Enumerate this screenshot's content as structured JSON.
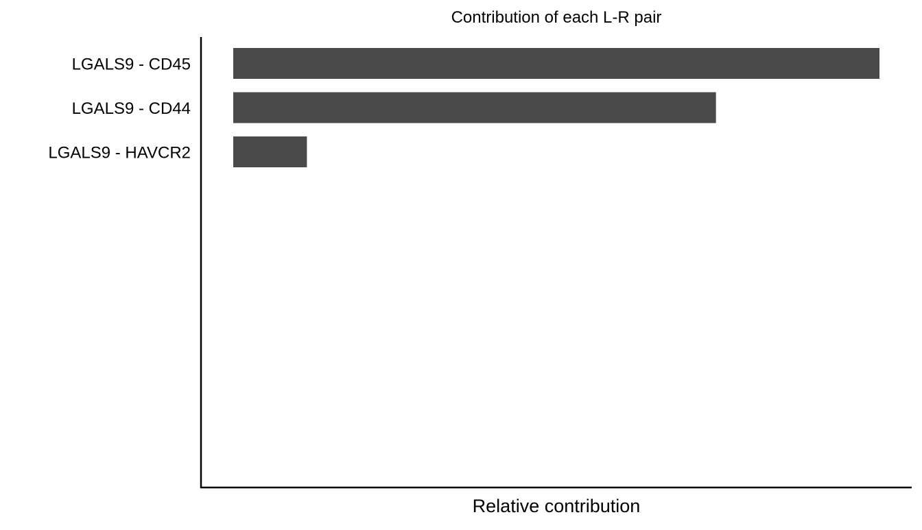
{
  "chart_data": {
    "type": "bar",
    "orientation": "horizontal",
    "title": "Contribution of each L-R pair",
    "xlabel": "Relative contribution",
    "ylabel": "",
    "categories": [
      "LGALS9 - CD45",
      "LGALS9 - CD44",
      "LGALS9 - HAVCR2"
    ],
    "values": [
      1.0,
      0.747,
      0.114
    ],
    "xlim": [
      0,
      1.0
    ],
    "x_ticks_shown": false,
    "grid": false,
    "legend": "none",
    "bar_color": "#4a4a4a"
  }
}
